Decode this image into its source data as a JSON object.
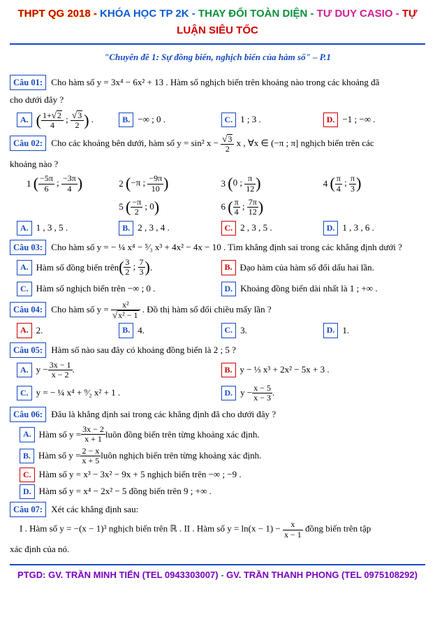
{
  "header": {
    "p1": "THPT QG 2018",
    "p2": "KHÓA HỌC TP 2K",
    "p3": "THAY ĐỔI TOÀN DIỆN",
    "p4": "TƯ DUY CASIO",
    "p5": "TỰ LUẬN SIÊU TỐC",
    "sep": " - "
  },
  "subtitle": "\"Chuyên đề 1: Sự đồng biến, nghịch biến của hàm số\" – P.1",
  "q01": {
    "label": "Câu 01:",
    "text_a": " Cho hàm số y = 3x⁴ − 6x² + 13 . Hàm số nghịch biến trên khoảng nào trong các khoảng đã",
    "text_b": "cho dưới đây ?",
    "A_pre": "(",
    "A_post": ") .",
    "B": "−∞ ; 0  .",
    "C": "1 ; 3  .",
    "D": "−1 ; −∞  ."
  },
  "q02": {
    "label": "Câu 02:",
    "text_a": " Cho các khoảng bên dưới, hàm số y = sin² x − ",
    "text_b": " x , ∀x ∈ (−π ; π]  nghịch biến trên các",
    "text_c": "khoảng nào ?",
    "n1": "1",
    "n2": "2",
    "n3": "3",
    "n4": "4",
    "n5": "5",
    "n6": "6",
    "A": "1 , 3 , 5 .",
    "B": "2 , 3 , 4 .",
    "C": "2 , 3 , 5 .",
    "D": "1 , 3 , 6 ."
  },
  "q03": {
    "label": "Câu 03:",
    "text": " Cho hàm số y = − ¼ x⁴ − ⁵⁄₃ x³ + 4x² − 4x − 10 . Tìm khẳng định sai trong các khẳng định dưới ?",
    "A_pre": "Hàm số đồng biến trên ",
    "A_post": " .",
    "B": "Đạo hàm của hàm số đổi dấu hai lần.",
    "C": "Hàm số nghịch biến trên  −∞ ; 0 .",
    "D": "Khoảng đồng biến dài nhất là  1 ; +∞ ."
  },
  "q04": {
    "label": "Câu 04:",
    "text_a": " Cho hàm số y = ",
    "text_b": " . Đồ thị hàm số đổi chiều mấy lần ?",
    "A": "2.",
    "B": "4.",
    "C": "3.",
    "D": "1."
  },
  "q05": {
    "label": "Câu 05:",
    "text": " Hàm số nào sau đây có khoảng đồng biến là  2 ; 5  ?",
    "A_pre": "y − ",
    "B": "y − ⅓ x³ + 2x² − 5x + 3 .",
    "C": "y = − ¼ x⁴ + ⁹⁄₂ x² + 1 .",
    "D_pre": "y − "
  },
  "q06": {
    "label": "Câu 06:",
    "text": " Đâu là khẳng định sai trong các khẳng định đã cho dưới đây ?",
    "A_pre": "Hàm số y = ",
    "A_post": " luôn đồng biến trên từng khoảng xác định.",
    "B_pre": "Hàm số y = ",
    "B_post": " luôn nghịch biến trên từng khoảng xác định.",
    "C": "Hàm số y = x³ − 3x² − 9x + 5 nghịch biến trên  −∞ ; −9 .",
    "D": "Hàm số y = x⁴ − 2x² − 5 đồng biến trên  9 ; +∞ ."
  },
  "q07": {
    "label": "Câu 07:",
    "text": " Xét các khẳng định sau:",
    "line2_a": "I . Hàm số y = −(x − 1)³ nghịch biến trên ℝ .  II . Hàm số y = ln(x − 1) − ",
    "line2_b": " đồng biến trên tập",
    "line3": "xác định của nó."
  },
  "footer": {
    "f1": "PTGD:  GV. TRẦN MINH TIẾN (TEL 0943303007)",
    "sep": " - ",
    "f2": "GV. TRẦN THANH PHONG (TEL 0975108292)"
  },
  "labels": {
    "A": "A.",
    "B": "B.",
    "C": "C.",
    "D": "D."
  }
}
